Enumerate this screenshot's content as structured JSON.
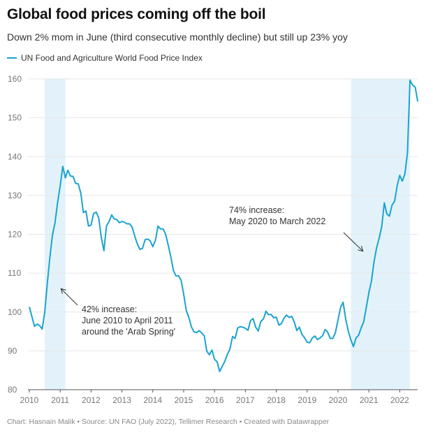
{
  "title": "Global food prices coming off the boil",
  "subtitle": "Down 2% mom in June (third consecutive monthly decline) but still up 23% yoy",
  "footer": "Chart: Hasnain Malik • Source: UN FAO (July 2022), Tellimer Research • Created with Datawrapper",
  "colors": {
    "line": "#1aa3cf",
    "shade": "#e3f2fa",
    "grid": "#e6e6e6"
  },
  "chart_data": {
    "type": "line",
    "title": "Global food prices coming off the boil",
    "subtitle": "Down 2% mom in June (third consecutive monthly decline) but still up 23% yoy",
    "xlabel": "",
    "ylabel": "",
    "xlim": [
      2010.0,
      2022.58
    ],
    "ylim": [
      80,
      160
    ],
    "grid": true,
    "legend": "top-left",
    "y_ticks": [
      80,
      90,
      100,
      110,
      120,
      130,
      140,
      150,
      160
    ],
    "x_ticks": [
      2010,
      2011,
      2012,
      2013,
      2014,
      2015,
      2016,
      2017,
      2018,
      2019,
      2020,
      2021,
      2022
    ],
    "shaded_ranges": [
      {
        "from": 2010.5,
        "to": 2011.17
      },
      {
        "from": 2020.42,
        "to": 2022.33
      }
    ],
    "series": [
      {
        "name": "UN Food and Agriculture World Food Price Index",
        "start": 2010.0,
        "step_months": 1,
        "values": [
          101.3,
          98.8,
          96.3,
          96.9,
          96.5,
          95.6,
          100.0,
          107.5,
          114.2,
          119.8,
          123.0,
          128.2,
          132.5,
          137.5,
          134.5,
          136.5,
          135.0,
          134.9,
          133.1,
          133.0,
          130.6,
          125.6,
          126.0,
          122.1,
          122.4,
          125.4,
          125.7,
          124.2,
          119.1,
          115.8,
          122.2,
          123.3,
          125.0,
          124.0,
          123.8,
          123.0,
          123.3,
          123.1,
          122.7,
          122.7,
          121.8,
          119.5,
          117.5,
          116.1,
          116.4,
          118.6,
          118.8,
          118.3,
          116.8,
          118.4,
          122.1,
          121.4,
          121.4,
          120.0,
          117.2,
          114.2,
          110.7,
          109.3,
          109.3,
          108.2,
          104.6,
          100.4,
          98.6,
          96.2,
          94.9,
          94.7,
          95.2,
          94.6,
          93.9,
          89.9,
          89.0,
          90.2,
          87.8,
          87.2,
          84.7,
          86.0,
          87.3,
          89.1,
          90.5,
          93.7,
          93.2,
          95.9,
          96.2,
          96.1,
          95.8,
          95.3,
          97.8,
          98.3,
          96.1,
          95.1,
          97.6,
          98.2,
          100.2,
          99.3,
          99.4,
          98.5,
          98.7,
          96.6,
          97.0,
          98.4,
          99.2,
          98.6,
          98.9,
          97.4,
          95.2,
          96.1,
          94.2,
          93.4,
          92.2,
          92.1,
          93.3,
          93.8,
          92.9,
          93.3,
          93.9,
          95.5,
          94.8,
          93.2,
          93.2,
          94.7,
          98.0,
          101.2,
          102.5,
          98.2,
          95.1,
          92.8,
          91.1,
          93.3,
          94.0,
          95.9,
          97.5,
          101.2,
          105.0,
          108.0,
          112.9,
          116.5,
          119.0,
          122.0,
          128.1,
          125.2,
          124.7,
          127.5,
          128.5,
          132.5,
          135.2,
          133.7,
          135.5,
          140.9,
          159.7,
          158.4,
          157.9,
          154.2
        ]
      }
    ],
    "annotations": [
      {
        "lines": [
          "42% increase:",
          "June 2010 to April 2011",
          "around the 'Arab Spring'"
        ]
      },
      {
        "lines": [
          "74% increase:",
          "May 2020 to March 2022"
        ]
      }
    ]
  }
}
